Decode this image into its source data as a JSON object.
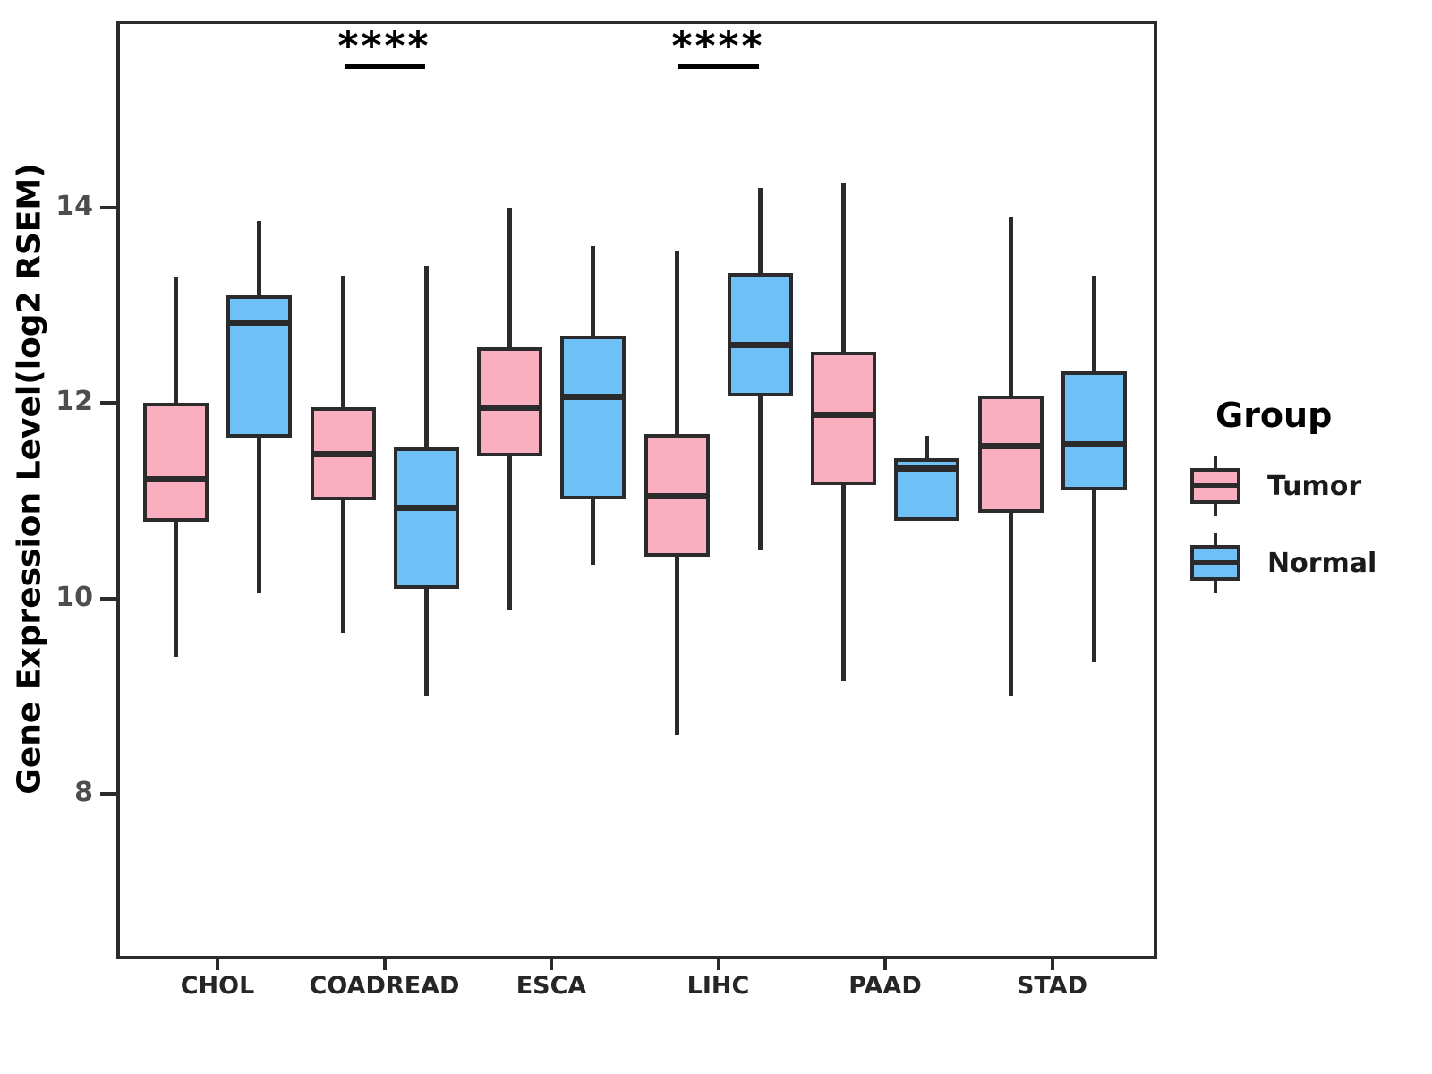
{
  "chart_data": {
    "type": "boxplot",
    "title": "",
    "xlabel": "",
    "ylabel": "Gene Expression Level(log2 RSEM)",
    "y_ticks": [
      8,
      10,
      12,
      14
    ],
    "ylim": [
      6.3,
      15.9
    ],
    "grid": "off",
    "categories": [
      "CHOL",
      "COADREAD",
      "ESCA",
      "LIHC",
      "PAAD",
      "STAD"
    ],
    "series": [
      {
        "name": "Tumor",
        "color": "#F9AFBF",
        "boxes": [
          {
            "whislo": 9.4,
            "q1": 10.78,
            "med": 11.22,
            "q3": 12.0,
            "whishi": 13.28
          },
          {
            "whislo": 9.65,
            "q1": 11.0,
            "med": 11.47,
            "q3": 11.95,
            "whishi": 13.3
          },
          {
            "whislo": 9.88,
            "q1": 11.45,
            "med": 11.95,
            "q3": 12.57,
            "whishi": 14.0
          },
          {
            "whislo": 8.6,
            "q1": 10.43,
            "med": 11.04,
            "q3": 11.68,
            "whishi": 13.55
          },
          {
            "whislo": 9.15,
            "q1": 11.16,
            "med": 11.88,
            "q3": 12.52,
            "whishi": 14.25
          },
          {
            "whislo": 9.0,
            "q1": 10.87,
            "med": 11.56,
            "q3": 12.07,
            "whishi": 13.9
          }
        ]
      },
      {
        "name": "Normal",
        "color": "#6EC0F7",
        "boxes": [
          {
            "whislo": 10.05,
            "q1": 11.64,
            "med": 12.82,
            "q3": 13.1,
            "whishi": 13.86
          },
          {
            "whislo": 9.0,
            "q1": 10.1,
            "med": 10.92,
            "q3": 11.54,
            "whishi": 13.4
          },
          {
            "whislo": 10.34,
            "q1": 11.01,
            "med": 12.06,
            "q3": 12.69,
            "whishi": 13.6
          },
          {
            "whislo": 10.5,
            "q1": 12.06,
            "med": 12.59,
            "q3": 13.33,
            "whishi": 14.2
          },
          {
            "whislo": 10.79,
            "q1": 10.79,
            "med": 11.33,
            "q3": 11.43,
            "whishi": 11.66
          },
          {
            "whislo": 9.35,
            "q1": 11.1,
            "med": 11.57,
            "q3": 12.32,
            "whishi": 13.3
          }
        ]
      }
    ],
    "significance": [
      {
        "category": "COADREAD",
        "label": "****"
      },
      {
        "category": "LIHC",
        "label": "****"
      }
    ],
    "legend": {
      "title": "Group",
      "entries": [
        "Tumor",
        "Normal"
      ],
      "position": "right"
    },
    "style": {
      "box_border_color": "#2b2b2b",
      "tick_label_color": "#4d4d4d",
      "axis_label_color": "#000000",
      "background": "#ffffff"
    }
  }
}
